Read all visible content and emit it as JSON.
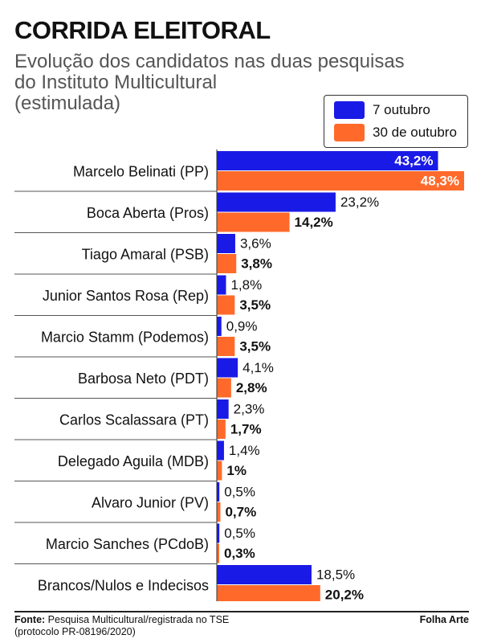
{
  "header": {
    "title": "CORRIDA ELEITORAL",
    "subtitle": "Evolução dos candidatos nas duas pesquisas\ndo Instituto Multicultural\n(estimulada)"
  },
  "footer": {
    "source_label": "Fonte:",
    "source_line1": "Pesquisa Multicultural/registrada no TSE",
    "source_line2": "(protocolo PR-08196/2020)",
    "credit": "Folha Arte"
  },
  "colors": {
    "series1": "#1a1ae6",
    "series2": "#ff6a2b"
  },
  "chart_data": {
    "type": "bar",
    "orientation": "horizontal",
    "categories": [
      "Marcelo Belinati (PP)",
      "Boca Aberta (Pros)",
      "Tiago Amaral (PSB)",
      "Junior Santos Rosa (Rep)",
      "Marcio Stamm (Podemos)",
      "Barbosa Neto (PDT)",
      "Carlos Scalassara (PT)",
      "Delegado Aguila (MDB)",
      "Alvaro Junior (PV)",
      "Marcio Sanches (PCdoB)",
      "Brancos/Nulos e Indecisos"
    ],
    "series": [
      {
        "name": "7 outubro",
        "values": [
          43.2,
          23.2,
          3.6,
          1.8,
          0.9,
          4.1,
          2.3,
          1.4,
          0.5,
          0.5,
          18.5
        ],
        "labels": [
          "43,2%",
          "23,2%",
          "3,6%",
          "1,8%",
          "0,9%",
          "4,1%",
          "2,3%",
          "1,4%",
          "0,5%",
          "0,5%",
          "18,5%"
        ]
      },
      {
        "name": "30 de outubro",
        "values": [
          48.3,
          14.2,
          3.8,
          3.5,
          3.5,
          2.8,
          1.7,
          1.0,
          0.7,
          0.3,
          20.2
        ],
        "labels": [
          "48,3%",
          "14,2%",
          "3,8%",
          "3,5%",
          "3,5%",
          "2,8%",
          "1,7%",
          "1%",
          "0,7%",
          "0,3%",
          "20,2%"
        ]
      }
    ],
    "legend": "top-right",
    "grid": false
  }
}
